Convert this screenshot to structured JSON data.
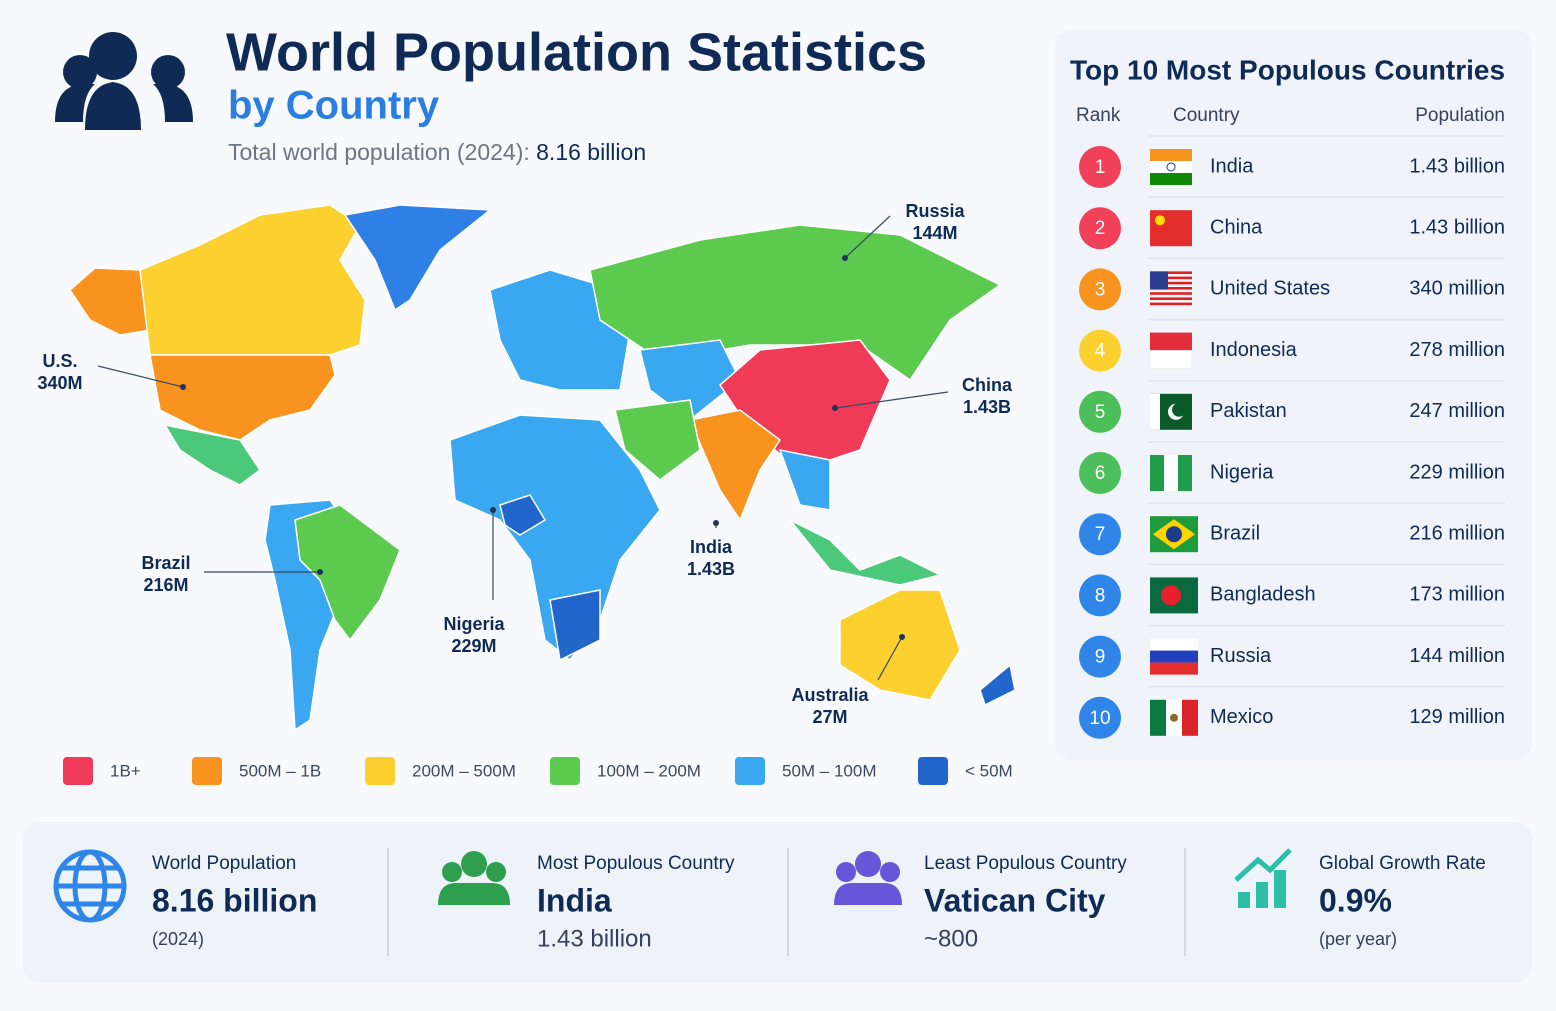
{
  "header": {
    "title": "World Population Statistics",
    "subtitle": "by Country",
    "summary_label": "Total world population (2024):",
    "summary_value": "8.16 billion"
  },
  "map": {
    "labels": [
      {
        "name": "Russia",
        "value": "144M"
      },
      {
        "name": "U.S.",
        "value": "340M"
      },
      {
        "name": "China",
        "value": "1.43B"
      },
      {
        "name": "Brazil",
        "value": "216M"
      },
      {
        "name": "Nigeria",
        "value": "229M"
      },
      {
        "name": "India",
        "value": "1.43B"
      },
      {
        "name": "Australia",
        "value": "27M"
      }
    ],
    "legend": [
      {
        "label": "1B+",
        "color": "#ef3b57"
      },
      {
        "label": "500M – 1B",
        "color": "#f7931e"
      },
      {
        "label": "200M – 500M",
        "color": "#fcd02f"
      },
      {
        "label": "100M – 200M",
        "color": "#5cc94f"
      },
      {
        "label": "50M – 100M",
        "color": "#3aa8f0"
      },
      {
        "label": "< 50M",
        "color": "#2266cc"
      }
    ]
  },
  "table": {
    "title": "Top 10 Most Populous Countries",
    "columns": [
      "Rank",
      "Country",
      "Population"
    ],
    "rows": [
      {
        "rank": "1",
        "country": "India",
        "population": "1.43 billion",
        "color": "#f0405a"
      },
      {
        "rank": "2",
        "country": "China",
        "population": "1.43 billion",
        "color": "#f0405a"
      },
      {
        "rank": "3",
        "country": "United States",
        "population": "340 million",
        "color": "#f7931e"
      },
      {
        "rank": "4",
        "country": "Indonesia",
        "population": "278 million",
        "color": "#fcd02f"
      },
      {
        "rank": "5",
        "country": "Pakistan",
        "population": "247 million",
        "color": "#4cbf5a"
      },
      {
        "rank": "6",
        "country": "Nigeria",
        "population": "229 million",
        "color": "#4cbf5a"
      },
      {
        "rank": "7",
        "country": "Brazil",
        "population": "216 million",
        "color": "#2f86e8"
      },
      {
        "rank": "8",
        "country": "Bangladesh",
        "population": "173 million",
        "color": "#2f86e8"
      },
      {
        "rank": "9",
        "country": "Russia",
        "population": "144 million",
        "color": "#2f86e8"
      },
      {
        "rank": "10",
        "country": "Mexico",
        "population": "129 million",
        "color": "#2f86e8"
      }
    ]
  },
  "stats": [
    {
      "label": "World Population",
      "value": "8.16 billion",
      "note": "(2024)"
    },
    {
      "label": "Most Populous Country",
      "value": "India",
      "note": "1.43 billion"
    },
    {
      "label": "Least Populous Country",
      "value": "Vatican City",
      "note": "~800"
    },
    {
      "label": "Global Growth Rate",
      "value": "0.9%",
      "note": "(per year)"
    }
  ]
}
